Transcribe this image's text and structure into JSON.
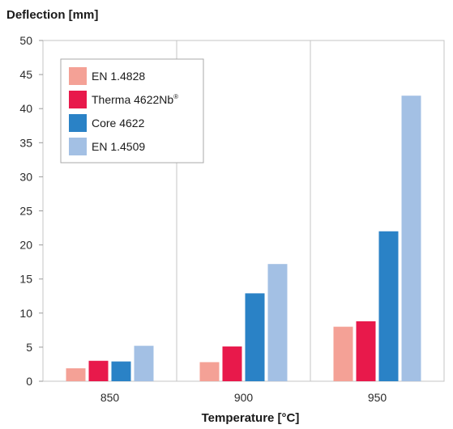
{
  "chart_data": {
    "type": "bar",
    "ylabel": "Deflection [mm]",
    "xlabel": "Temperature [°C]",
    "categories": [
      "850",
      "900",
      "950"
    ],
    "ylim": [
      0,
      50
    ],
    "yticks": [
      0,
      5,
      10,
      15,
      20,
      25,
      30,
      35,
      40,
      45,
      50
    ],
    "grid": "vertical lines between categories",
    "legend_position": "top-left",
    "series": [
      {
        "name": "EN 1.4828",
        "color": "#f4a196",
        "values": [
          1.9,
          2.8,
          8.0
        ]
      },
      {
        "name": "Therma 4622Nb",
        "name_sup": "®",
        "color": "#e8194b",
        "values": [
          3.0,
          5.1,
          8.8
        ]
      },
      {
        "name": "Core 4622",
        "color": "#2a82c6",
        "values": [
          2.9,
          12.9,
          22.0
        ]
      },
      {
        "name": "EN 1.4509",
        "color": "#a3c0e4",
        "values": [
          5.2,
          17.2,
          41.9
        ]
      }
    ]
  }
}
